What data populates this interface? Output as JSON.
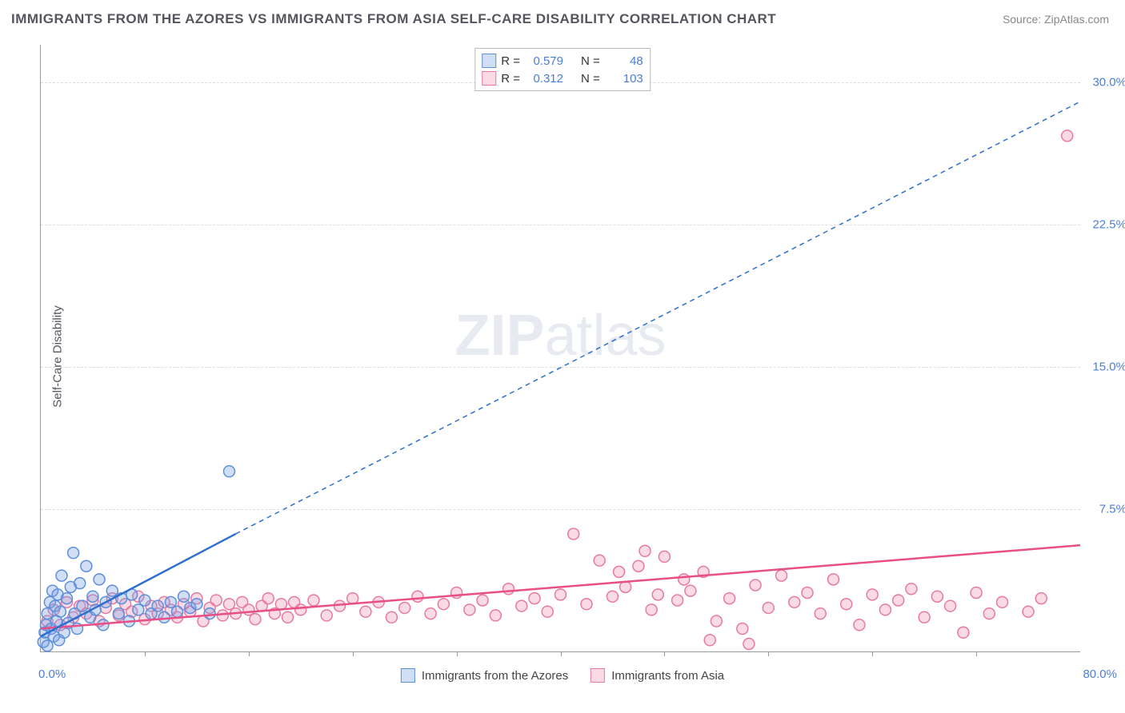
{
  "title": "IMMIGRANTS FROM THE AZORES VS IMMIGRANTS FROM ASIA SELF-CARE DISABILITY CORRELATION CHART",
  "source": "Source: ZipAtlas.com",
  "ylabel": "Self-Care Disability",
  "watermark_zip": "ZIP",
  "watermark_atlas": "atlas",
  "chart": {
    "type": "scatter",
    "x_min": 0,
    "x_max": 80,
    "y_min": 0,
    "y_max": 32,
    "x_origin_label": "0.0%",
    "x_max_label": "80.0%",
    "y_ticks": [
      7.5,
      15.0,
      22.5,
      30.0
    ],
    "y_tick_labels": [
      "7.5%",
      "15.0%",
      "22.5%",
      "30.0%"
    ],
    "x_minor_ticks": [
      8,
      16,
      24,
      32,
      40,
      48,
      56,
      64,
      72
    ],
    "grid_color": "#dddddd",
    "background_color": "#ffffff",
    "marker_radius": 7,
    "marker_stroke_width": 1.5,
    "series": [
      {
        "id": "azores",
        "label": "Immigrants from the Azores",
        "fill": "rgba(120,160,230,0.35)",
        "stroke": "#5e8fd9",
        "trend_color": "#2f6fd0",
        "trend_width": 2.5,
        "trend_solid": {
          "x1": 0,
          "y1": 0.8,
          "x2": 15,
          "y2": 6.2
        },
        "trend_dash": {
          "x1": 15,
          "y1": 6.2,
          "x2": 80,
          "y2": 29
        },
        "R_label": "R =",
        "R_value": "0.579",
        "N_label": "N =",
        "N_value": "48",
        "points": [
          [
            0.2,
            0.5
          ],
          [
            0.3,
            1.0
          ],
          [
            0.4,
            1.4
          ],
          [
            0.5,
            2.0
          ],
          [
            0.5,
            0.3
          ],
          [
            0.7,
            2.6
          ],
          [
            0.8,
            1.2
          ],
          [
            0.9,
            3.2
          ],
          [
            1.0,
            0.8
          ],
          [
            1.1,
            2.4
          ],
          [
            1.2,
            1.6
          ],
          [
            1.3,
            3.0
          ],
          [
            1.4,
            0.6
          ],
          [
            1.5,
            2.1
          ],
          [
            1.6,
            4.0
          ],
          [
            1.8,
            1.0
          ],
          [
            2.0,
            2.8
          ],
          [
            2.1,
            1.5
          ],
          [
            2.3,
            3.4
          ],
          [
            2.5,
            5.2
          ],
          [
            2.6,
            2.0
          ],
          [
            2.8,
            1.2
          ],
          [
            3.0,
            3.6
          ],
          [
            3.2,
            2.4
          ],
          [
            3.5,
            4.5
          ],
          [
            3.8,
            1.8
          ],
          [
            4.0,
            2.9
          ],
          [
            4.2,
            2.2
          ],
          [
            4.5,
            3.8
          ],
          [
            4.8,
            1.4
          ],
          [
            5.0,
            2.6
          ],
          [
            5.5,
            3.2
          ],
          [
            6.0,
            2.0
          ],
          [
            6.2,
            2.8
          ],
          [
            6.8,
            1.6
          ],
          [
            7.0,
            3.0
          ],
          [
            7.5,
            2.2
          ],
          [
            8.0,
            2.7
          ],
          [
            8.5,
            2.0
          ],
          [
            9.0,
            2.4
          ],
          [
            9.5,
            1.8
          ],
          [
            10.0,
            2.6
          ],
          [
            10.5,
            2.1
          ],
          [
            11.0,
            2.9
          ],
          [
            11.5,
            2.3
          ],
          [
            12.0,
            2.5
          ],
          [
            13.0,
            2.0
          ],
          [
            14.5,
            9.5
          ]
        ]
      },
      {
        "id": "asia",
        "label": "Immigrants from Asia",
        "fill": "rgba(240,150,180,0.35)",
        "stroke": "#e77aa0",
        "trend_color": "#e94e84",
        "trend_width": 2.5,
        "trend_solid": {
          "x1": 0,
          "y1": 1.2,
          "x2": 80,
          "y2": 5.6
        },
        "trend_dash": null,
        "R_label": "R =",
        "R_value": "0.312",
        "N_label": "N =",
        "N_value": "103",
        "points": [
          [
            0.5,
            1.6
          ],
          [
            1.0,
            2.2
          ],
          [
            1.5,
            1.4
          ],
          [
            2.0,
            2.6
          ],
          [
            2.5,
            1.8
          ],
          [
            3.0,
            2.4
          ],
          [
            3.5,
            2.0
          ],
          [
            4.0,
            2.7
          ],
          [
            4.5,
            1.6
          ],
          [
            5.0,
            2.3
          ],
          [
            5.5,
            2.8
          ],
          [
            6.0,
            1.9
          ],
          [
            6.5,
            2.5
          ],
          [
            7.0,
            2.1
          ],
          [
            7.5,
            2.9
          ],
          [
            8.0,
            1.7
          ],
          [
            8.5,
            2.4
          ],
          [
            9.0,
            2.0
          ],
          [
            9.5,
            2.6
          ],
          [
            10.0,
            2.2
          ],
          [
            10.5,
            1.8
          ],
          [
            11.0,
            2.5
          ],
          [
            11.5,
            2.1
          ],
          [
            12.0,
            2.8
          ],
          [
            12.5,
            1.6
          ],
          [
            13.0,
            2.3
          ],
          [
            13.5,
            2.7
          ],
          [
            14.0,
            1.9
          ],
          [
            14.5,
            2.5
          ],
          [
            15.0,
            2.0
          ],
          [
            15.5,
            2.6
          ],
          [
            16.0,
            2.2
          ],
          [
            16.5,
            1.7
          ],
          [
            17.0,
            2.4
          ],
          [
            17.5,
            2.8
          ],
          [
            18.0,
            2.0
          ],
          [
            18.5,
            2.5
          ],
          [
            19.0,
            1.8
          ],
          [
            19.5,
            2.6
          ],
          [
            20.0,
            2.2
          ],
          [
            21.0,
            2.7
          ],
          [
            22.0,
            1.9
          ],
          [
            23.0,
            2.4
          ],
          [
            24.0,
            2.8
          ],
          [
            25.0,
            2.1
          ],
          [
            26.0,
            2.6
          ],
          [
            27.0,
            1.8
          ],
          [
            28.0,
            2.3
          ],
          [
            29.0,
            2.9
          ],
          [
            30.0,
            2.0
          ],
          [
            31.0,
            2.5
          ],
          [
            32.0,
            3.1
          ],
          [
            33.0,
            2.2
          ],
          [
            34.0,
            2.7
          ],
          [
            35.0,
            1.9
          ],
          [
            36.0,
            3.3
          ],
          [
            37.0,
            2.4
          ],
          [
            38.0,
            2.8
          ],
          [
            39.0,
            2.1
          ],
          [
            40.0,
            3.0
          ],
          [
            41.0,
            6.2
          ],
          [
            42.0,
            2.5
          ],
          [
            43.0,
            4.8
          ],
          [
            44.0,
            2.9
          ],
          [
            45.0,
            3.4
          ],
          [
            46.0,
            4.5
          ],
          [
            47.0,
            2.2
          ],
          [
            48.0,
            5.0
          ],
          [
            49.0,
            2.7
          ],
          [
            50.0,
            3.2
          ],
          [
            51.0,
            4.2
          ],
          [
            52.0,
            1.6
          ],
          [
            53.0,
            2.8
          ],
          [
            54.0,
            1.2
          ],
          [
            55.0,
            3.5
          ],
          [
            51.5,
            0.6
          ],
          [
            56.0,
            2.3
          ],
          [
            57.0,
            4.0
          ],
          [
            58.0,
            2.6
          ],
          [
            59.0,
            3.1
          ],
          [
            60.0,
            2.0
          ],
          [
            61.0,
            3.8
          ],
          [
            62.0,
            2.5
          ],
          [
            63.0,
            1.4
          ],
          [
            64.0,
            3.0
          ],
          [
            65.0,
            2.2
          ],
          [
            54.5,
            0.4
          ],
          [
            66.0,
            2.7
          ],
          [
            67.0,
            3.3
          ],
          [
            68.0,
            1.8
          ],
          [
            69.0,
            2.9
          ],
          [
            70.0,
            2.4
          ],
          [
            71.0,
            1.0
          ],
          [
            72.0,
            3.1
          ],
          [
            73.0,
            2.0
          ],
          [
            74.0,
            2.6
          ],
          [
            76.0,
            2.1
          ],
          [
            77.0,
            2.8
          ],
          [
            79.0,
            27.2
          ],
          [
            46.5,
            5.3
          ],
          [
            44.5,
            4.2
          ],
          [
            49.5,
            3.8
          ],
          [
            47.5,
            3.0
          ]
        ]
      }
    ]
  }
}
